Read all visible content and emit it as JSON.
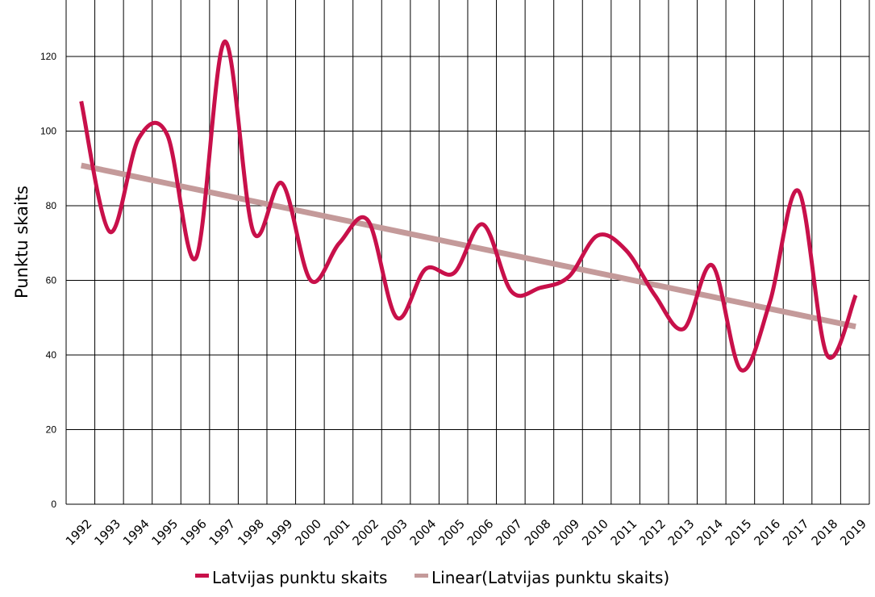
{
  "chart_data": {
    "type": "line",
    "title": "",
    "xlabel": "",
    "ylabel": "Punktu skaits",
    "ylim": [
      0,
      120
    ],
    "yticks": [
      0,
      20,
      40,
      60,
      80,
      100,
      120
    ],
    "grid": true,
    "legend_position": "bottom",
    "categories": [
      "1992",
      "1993",
      "1994",
      "1995",
      "1996",
      "1997",
      "1998",
      "1999",
      "2000",
      "2001",
      "2002",
      "2003",
      "2004",
      "2005",
      "2006",
      "2007",
      "2008",
      "2009",
      "2010",
      "2011",
      "2012",
      "2013",
      "2014",
      "2015",
      "2016",
      "2017",
      "2018",
      "2019"
    ],
    "series": [
      {
        "name": "Latvijas punktu skaits",
        "color": "#c8104a",
        "style": "smooth",
        "values": [
          108,
          73,
          98,
          99,
          66,
          124,
          73,
          86,
          60,
          70,
          76,
          50,
          63,
          62,
          75,
          57,
          58,
          61,
          72,
          68,
          56,
          47,
          64,
          36,
          54,
          84,
          40,
          56
        ]
      },
      {
        "name": "Linear(Latvijas punktu skaits)",
        "color": "#c49a9a",
        "style": "trendline",
        "values": [
          90.8,
          89.2,
          87.6,
          86.0,
          84.4,
          82.8,
          81.2,
          79.6,
          78.0,
          76.4,
          74.8,
          73.2,
          71.6,
          70.0,
          68.4,
          66.8,
          65.2,
          63.6,
          62.0,
          60.4,
          58.8,
          57.2,
          55.6,
          54.0,
          52.4,
          50.8,
          49.2,
          47.6
        ]
      }
    ]
  }
}
